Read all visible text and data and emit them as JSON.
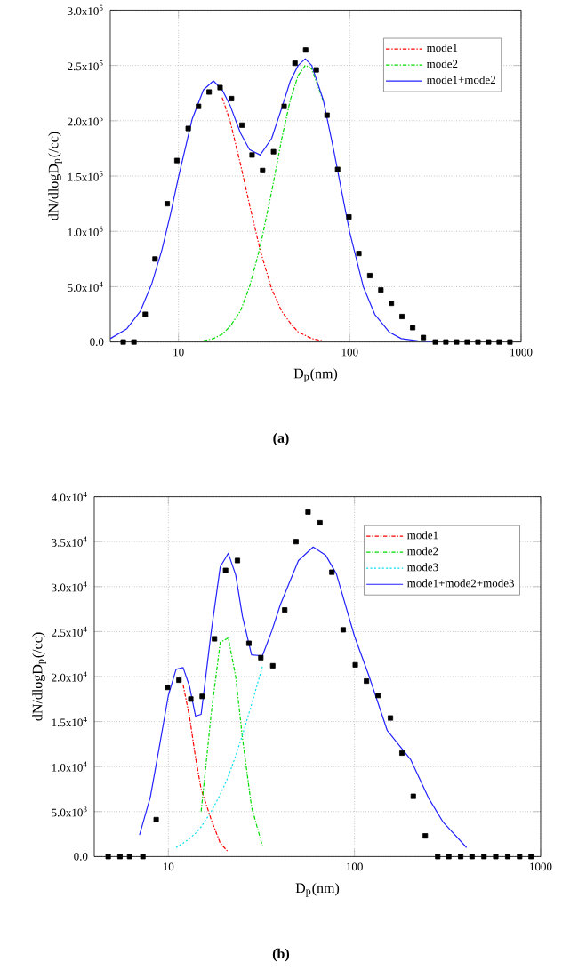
{
  "chart_data": [
    {
      "type": "line",
      "xlabel": "D$_{p}$(nm)",
      "ylabel": "dN/dlogD$_{p}$(/cc)",
      "log": "x",
      "grid": true,
      "legend": "top right",
      "xlim": [
        4,
        1000
      ],
      "xticks": [
        10,
        100,
        1000
      ],
      "ylim": [
        0,
        300000
      ],
      "yticks": [
        {
          "value": 0,
          "label": "0.0"
        },
        {
          "value": 50000,
          "label": "5.0x10$^{4}$"
        },
        {
          "value": 100000,
          "label": "1.0x10$^{5}$"
        },
        {
          "value": 150000,
          "label": "1.5x10$^{5}$"
        },
        {
          "value": 200000,
          "label": "2.0x10$^{5}$"
        },
        {
          "value": 250000,
          "label": "2.5x10$^{5}$"
        },
        {
          "value": 300000,
          "label": "3.0x10$^{5}$"
        }
      ],
      "annotations": [
        "(a)"
      ],
      "series": [
        {
          "type": "scatter",
          "marker": "square",
          "color": "#000000",
          "x": [
            4.76,
            5.5,
            6.4,
            7.3,
            8.6,
            9.8,
            11.4,
            13.1,
            15.1,
            17.5,
            20.4,
            23.5,
            26.9,
            31,
            35.9,
            41.4,
            47.9,
            55.3,
            63.8,
            73.7,
            85,
            99,
            113,
            131,
            152,
            175,
            202,
            233,
            269,
            316,
            364,
            420,
            485,
            560,
            646,
            746,
            861
          ],
          "values": [
            0,
            0,
            25000,
            75000,
            125000,
            164000,
            193000,
            213000,
            226000,
            230000,
            220000,
            196000,
            169000,
            155000,
            172000,
            213000,
            252000,
            264000,
            246000,
            205000,
            156000,
            113000,
            80000,
            60000,
            47000,
            35000,
            23000,
            13000,
            4000,
            0,
            0,
            0,
            0,
            0,
            0,
            0,
            0
          ]
        },
        {
          "name": "mode1",
          "color": "#ff0000",
          "line_style": "dashed",
          "x": [
            18,
            20,
            23,
            26,
            30,
            35,
            40,
            45,
            50,
            55,
            60,
            70
          ],
          "values": [
            221000,
            200000,
            161000,
            124000,
            83000,
            48000,
            28000,
            17000,
            9000,
            6000,
            3000,
            1000
          ]
        },
        {
          "name": "mode2",
          "color": "#00dd00",
          "line_style": "dashed",
          "x": [
            14,
            16,
            18,
            20,
            23,
            26,
            30,
            35,
            40,
            45,
            50,
            55,
            60,
            70
          ],
          "values": [
            1000,
            3000,
            7000,
            14000,
            28000,
            50000,
            86000,
            136000,
            183000,
            219000,
            241000,
            250000,
            247000,
            218000
          ]
        },
        {
          "name": "mode1+mode2",
          "color": "#2222ff",
          "line_style": "solid",
          "x": [
            4,
            5,
            6,
            7,
            8,
            9,
            10,
            12,
            14,
            16,
            18,
            20,
            23,
            26,
            30,
            35,
            40,
            45,
            50,
            55,
            60,
            70,
            80,
            90,
            100,
            120,
            140,
            170,
            200,
            250,
            300
          ],
          "values": [
            3000,
            12000,
            28000,
            53000,
            83000,
            116000,
            149000,
            201000,
            228000,
            236000,
            228000,
            214000,
            189000,
            174000,
            169000,
            184000,
            211000,
            236000,
            250000,
            256000,
            250000,
            219000,
            176000,
            135000,
            99000,
            50000,
            25000,
            9000,
            3000,
            1000,
            0
          ]
        }
      ]
    },
    {
      "type": "line",
      "xlabel": "D$_{p}$(nm)",
      "ylabel": "dN/dlogD$_{p}$(/cc)",
      "log": "x",
      "grid": true,
      "legend": "top right",
      "xlim": [
        4,
        1000
      ],
      "xticks": [
        10,
        100,
        1000
      ],
      "ylim": [
        0,
        40000
      ],
      "yticks": [
        {
          "value": 0,
          "label": "0.0"
        },
        {
          "value": 5000,
          "label": "5.0x10$^{3}$"
        },
        {
          "value": 10000,
          "label": "1.0x10$^{4}$"
        },
        {
          "value": 15000,
          "label": "1.5x10$^{4}$"
        },
        {
          "value": 20000,
          "label": "2.0x10$^{4}$"
        },
        {
          "value": 25000,
          "label": "2.5x10$^{4}$"
        },
        {
          "value": 30000,
          "label": "3.0x10$^{4}$"
        },
        {
          "value": 35000,
          "label": "3.5x10$^{4}$"
        },
        {
          "value": 40000,
          "label": "4.0x10$^{4}$"
        }
      ],
      "annotations": [
        "(b)"
      ],
      "series": [
        {
          "type": "scatter",
          "marker": "square",
          "color": "#000000",
          "x": [
            4.75,
            5.5,
            6.2,
            7.3,
            8.6,
            9.9,
            11.4,
            13.2,
            15.2,
            17.7,
            20.3,
            23.5,
            27.1,
            31.4,
            36.4,
            42.2,
            48.5,
            56.3,
            65.2,
            75.6,
            87,
            101,
            116,
            134,
            156,
            180,
            207,
            240,
            280,
            321,
            372,
            428,
            496,
            574,
            666,
            771,
            889
          ],
          "values": [
            0,
            0,
            0,
            0,
            4100,
            18800,
            19600,
            17500,
            17800,
            24200,
            31800,
            32900,
            23700,
            22100,
            21200,
            27400,
            35000,
            38300,
            37100,
            31600,
            25200,
            21300,
            19500,
            17900,
            15400,
            11500,
            6700,
            2300,
            0,
            0,
            0,
            0,
            0,
            0,
            0,
            0,
            0
          ]
        },
        {
          "name": "mode1",
          "color": "#ff0000",
          "line_style": "dashed",
          "x": [
            12,
            13,
            14,
            15,
            17,
            19,
            21
          ],
          "values": [
            19100,
            15500,
            11000,
            7500,
            4100,
            1500,
            500
          ]
        },
        {
          "name": "mode2",
          "color": "#00dd00",
          "line_style": "dashed",
          "x": [
            15,
            17,
            19,
            21,
            23,
            25,
            28,
            32
          ],
          "values": [
            5000,
            15900,
            23800,
            24300,
            20000,
            13200,
            5500,
            1200
          ]
        },
        {
          "name": "mode3",
          "color": "#00e0f0",
          "line_style": "dotted",
          "x": [
            11,
            12,
            13,
            14,
            15,
            17,
            19,
            21,
            23,
            25,
            28,
            32
          ],
          "values": [
            1000,
            1500,
            2000,
            2600,
            3300,
            5000,
            6900,
            8900,
            11200,
            13500,
            16900,
            21100
          ]
        },
        {
          "name": "mode1+mode2+mode3",
          "color": "#2222ff",
          "line_style": "solid",
          "x": [
            7,
            8,
            9,
            10,
            11,
            12,
            13,
            14,
            15,
            17,
            19,
            21,
            23,
            25,
            28,
            32,
            36,
            40,
            50,
            60,
            70,
            80,
            100,
            120,
            150,
            200,
            250,
            300,
            400
          ],
          "values": [
            2400,
            6600,
            12500,
            17900,
            20800,
            21000,
            18900,
            15600,
            15800,
            25000,
            32200,
            33700,
            31300,
            26700,
            22400,
            22300,
            25100,
            28000,
            32900,
            34400,
            33500,
            31400,
            24500,
            20000,
            14000,
            10800,
            6500,
            3800,
            1000
          ]
        }
      ]
    }
  ]
}
